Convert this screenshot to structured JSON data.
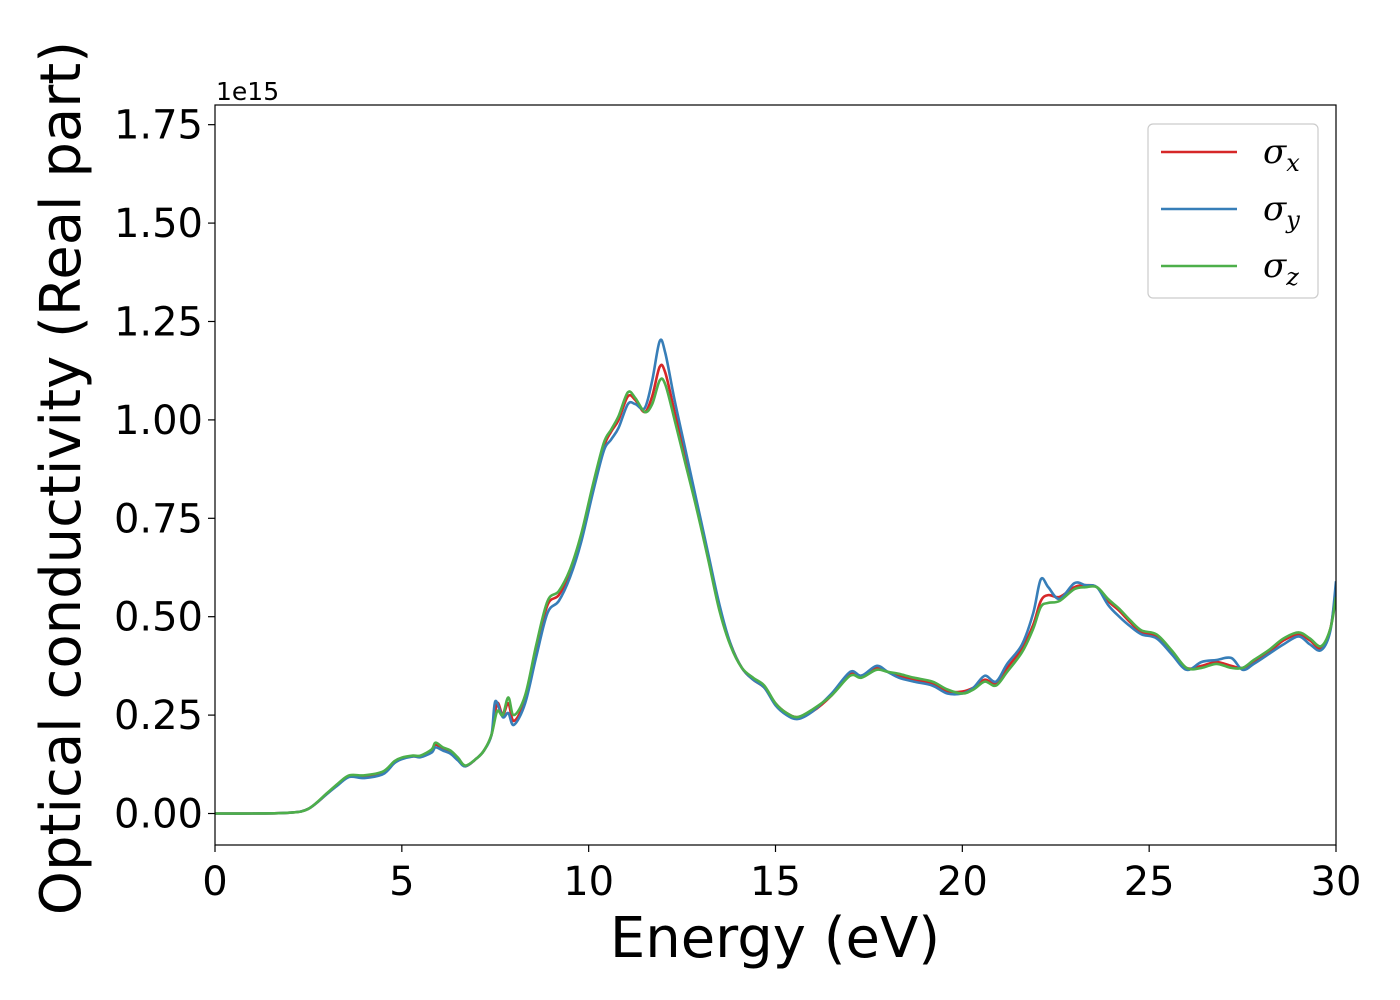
{
  "chart_data": {
    "type": "line",
    "title": "",
    "xlabel": "Energy (eV)",
    "ylabel": "Optical conductivity (Real part)",
    "y_offset_label": "1e15",
    "xlim": [
      0,
      30
    ],
    "ylim": [
      -0.08,
      1.8
    ],
    "x_ticks": [
      0,
      5,
      10,
      15,
      20,
      25,
      30
    ],
    "x_tick_labels": [
      "0",
      "5",
      "10",
      "15",
      "20",
      "25",
      "30"
    ],
    "y_ticks": [
      0.0,
      0.25,
      0.5,
      0.75,
      1.0,
      1.25,
      1.5,
      1.75
    ],
    "y_tick_labels": [
      "0.00",
      "0.25",
      "0.50",
      "0.75",
      "1.00",
      "1.25",
      "1.50",
      "1.75"
    ],
    "grid": false,
    "legend_position": "top-right",
    "series": [
      {
        "name": "σx",
        "legend_symbol": "σ",
        "legend_sub": "x",
        "color": "#d62728",
        "points": [
          [
            0,
            0
          ],
          [
            1,
            0
          ],
          [
            2,
            0.002
          ],
          [
            2.5,
            0.012
          ],
          [
            3,
            0.05
          ],
          [
            3.3,
            0.075
          ],
          [
            3.6,
            0.095
          ],
          [
            4,
            0.095
          ],
          [
            4.5,
            0.105
          ],
          [
            4.8,
            0.13
          ],
          [
            5,
            0.14
          ],
          [
            5.3,
            0.145
          ],
          [
            5.5,
            0.145
          ],
          [
            5.8,
            0.16
          ],
          [
            5.9,
            0.175
          ],
          [
            6.1,
            0.165
          ],
          [
            6.3,
            0.158
          ],
          [
            6.5,
            0.14
          ],
          [
            6.7,
            0.12
          ],
          [
            7,
            0.14
          ],
          [
            7.2,
            0.16
          ],
          [
            7.4,
            0.2
          ],
          [
            7.55,
            0.28
          ],
          [
            7.7,
            0.25
          ],
          [
            7.85,
            0.28
          ],
          [
            8,
            0.235
          ],
          [
            8.3,
            0.29
          ],
          [
            8.6,
            0.42
          ],
          [
            8.9,
            0.53
          ],
          [
            9.2,
            0.555
          ],
          [
            9.5,
            0.61
          ],
          [
            9.8,
            0.7
          ],
          [
            10.1,
            0.82
          ],
          [
            10.4,
            0.93
          ],
          [
            10.6,
            0.97
          ],
          [
            10.8,
            1.0
          ],
          [
            11.05,
            1.06
          ],
          [
            11.25,
            1.05
          ],
          [
            11.5,
            1.02
          ],
          [
            11.7,
            1.06
          ],
          [
            11.9,
            1.135
          ],
          [
            12.05,
            1.12
          ],
          [
            12.3,
            1.02
          ],
          [
            12.6,
            0.9
          ],
          [
            12.9,
            0.78
          ],
          [
            13.2,
            0.65
          ],
          [
            13.5,
            0.52
          ],
          [
            13.8,
            0.43
          ],
          [
            14.1,
            0.37
          ],
          [
            14.4,
            0.34
          ],
          [
            14.7,
            0.32
          ],
          [
            15,
            0.28
          ],
          [
            15.3,
            0.255
          ],
          [
            15.6,
            0.245
          ],
          [
            16,
            0.26
          ],
          [
            16.5,
            0.3
          ],
          [
            17,
            0.355
          ],
          [
            17.3,
            0.35
          ],
          [
            17.7,
            0.37
          ],
          [
            18,
            0.36
          ],
          [
            18.3,
            0.35
          ],
          [
            18.7,
            0.34
          ],
          [
            19.2,
            0.33
          ],
          [
            19.6,
            0.31
          ],
          [
            20,
            0.31
          ],
          [
            20.3,
            0.32
          ],
          [
            20.6,
            0.34
          ],
          [
            20.9,
            0.33
          ],
          [
            21.2,
            0.37
          ],
          [
            21.6,
            0.42
          ],
          [
            21.9,
            0.48
          ],
          [
            22.1,
            0.54
          ],
          [
            22.3,
            0.555
          ],
          [
            22.6,
            0.55
          ],
          [
            23,
            0.575
          ],
          [
            23.3,
            0.58
          ],
          [
            23.6,
            0.575
          ],
          [
            23.9,
            0.54
          ],
          [
            24.2,
            0.515
          ],
          [
            24.5,
            0.485
          ],
          [
            24.8,
            0.46
          ],
          [
            25.2,
            0.45
          ],
          [
            25.6,
            0.41
          ],
          [
            26,
            0.37
          ],
          [
            26.4,
            0.375
          ],
          [
            26.8,
            0.385
          ],
          [
            27.2,
            0.375
          ],
          [
            27.5,
            0.37
          ],
          [
            27.8,
            0.385
          ],
          [
            28.2,
            0.41
          ],
          [
            28.6,
            0.44
          ],
          [
            29,
            0.455
          ],
          [
            29.3,
            0.44
          ],
          [
            29.6,
            0.42
          ],
          [
            29.85,
            0.47
          ],
          [
            30,
            0.57
          ]
        ]
      },
      {
        "name": "σy",
        "legend_symbol": "σ",
        "legend_sub": "y",
        "color": "#377eb8",
        "points": [
          [
            0,
            0
          ],
          [
            1,
            0
          ],
          [
            2,
            0.002
          ],
          [
            2.5,
            0.012
          ],
          [
            3,
            0.05
          ],
          [
            3.3,
            0.073
          ],
          [
            3.6,
            0.093
          ],
          [
            4,
            0.09
          ],
          [
            4.5,
            0.1
          ],
          [
            4.8,
            0.128
          ],
          [
            5,
            0.138
          ],
          [
            5.3,
            0.145
          ],
          [
            5.5,
            0.143
          ],
          [
            5.8,
            0.155
          ],
          [
            5.9,
            0.168
          ],
          [
            6.1,
            0.16
          ],
          [
            6.3,
            0.152
          ],
          [
            6.5,
            0.135
          ],
          [
            6.7,
            0.12
          ],
          [
            7,
            0.14
          ],
          [
            7.2,
            0.16
          ],
          [
            7.4,
            0.2
          ],
          [
            7.5,
            0.285
          ],
          [
            7.7,
            0.245
          ],
          [
            7.85,
            0.255
          ],
          [
            8,
            0.225
          ],
          [
            8.3,
            0.28
          ],
          [
            8.6,
            0.4
          ],
          [
            8.9,
            0.51
          ],
          [
            9.2,
            0.54
          ],
          [
            9.5,
            0.6
          ],
          [
            9.8,
            0.69
          ],
          [
            10.1,
            0.81
          ],
          [
            10.4,
            0.92
          ],
          [
            10.6,
            0.95
          ],
          [
            10.8,
            0.98
          ],
          [
            11.05,
            1.04
          ],
          [
            11.25,
            1.04
          ],
          [
            11.5,
            1.03
          ],
          [
            11.7,
            1.1
          ],
          [
            11.9,
            1.2
          ],
          [
            12.05,
            1.17
          ],
          [
            12.3,
            1.05
          ],
          [
            12.6,
            0.92
          ],
          [
            12.9,
            0.79
          ],
          [
            13.2,
            0.66
          ],
          [
            13.5,
            0.53
          ],
          [
            13.8,
            0.43
          ],
          [
            14.1,
            0.37
          ],
          [
            14.4,
            0.34
          ],
          [
            14.7,
            0.32
          ],
          [
            15,
            0.275
          ],
          [
            15.3,
            0.25
          ],
          [
            15.6,
            0.24
          ],
          [
            16,
            0.26
          ],
          [
            16.5,
            0.305
          ],
          [
            17,
            0.36
          ],
          [
            17.3,
            0.35
          ],
          [
            17.7,
            0.375
          ],
          [
            18,
            0.36
          ],
          [
            18.3,
            0.345
          ],
          [
            18.7,
            0.335
          ],
          [
            19.2,
            0.325
          ],
          [
            19.6,
            0.305
          ],
          [
            20,
            0.305
          ],
          [
            20.3,
            0.32
          ],
          [
            20.6,
            0.35
          ],
          [
            20.9,
            0.335
          ],
          [
            21.2,
            0.38
          ],
          [
            21.6,
            0.43
          ],
          [
            21.9,
            0.51
          ],
          [
            22.1,
            0.595
          ],
          [
            22.3,
            0.575
          ],
          [
            22.6,
            0.545
          ],
          [
            23,
            0.585
          ],
          [
            23.3,
            0.58
          ],
          [
            23.6,
            0.575
          ],
          [
            23.9,
            0.53
          ],
          [
            24.2,
            0.5
          ],
          [
            24.5,
            0.475
          ],
          [
            24.8,
            0.455
          ],
          [
            25.2,
            0.445
          ],
          [
            25.6,
            0.405
          ],
          [
            26,
            0.365
          ],
          [
            26.4,
            0.385
          ],
          [
            26.8,
            0.39
          ],
          [
            27.2,
            0.395
          ],
          [
            27.5,
            0.365
          ],
          [
            27.8,
            0.38
          ],
          [
            28.2,
            0.405
          ],
          [
            28.6,
            0.43
          ],
          [
            29,
            0.45
          ],
          [
            29.3,
            0.43
          ],
          [
            29.6,
            0.415
          ],
          [
            29.85,
            0.465
          ],
          [
            30,
            0.59
          ]
        ]
      },
      {
        "name": "σz",
        "legend_symbol": "σ",
        "legend_sub": "z",
        "color": "#4daf4a",
        "points": [
          [
            0,
            0
          ],
          [
            1,
            0
          ],
          [
            2,
            0.002
          ],
          [
            2.5,
            0.012
          ],
          [
            3,
            0.052
          ],
          [
            3.3,
            0.077
          ],
          [
            3.6,
            0.097
          ],
          [
            4,
            0.097
          ],
          [
            4.5,
            0.107
          ],
          [
            4.8,
            0.133
          ],
          [
            5,
            0.142
          ],
          [
            5.3,
            0.147
          ],
          [
            5.5,
            0.147
          ],
          [
            5.8,
            0.163
          ],
          [
            5.9,
            0.18
          ],
          [
            6.1,
            0.168
          ],
          [
            6.3,
            0.16
          ],
          [
            6.5,
            0.142
          ],
          [
            6.7,
            0.122
          ],
          [
            7,
            0.14
          ],
          [
            7.2,
            0.16
          ],
          [
            7.4,
            0.2
          ],
          [
            7.55,
            0.26
          ],
          [
            7.7,
            0.25
          ],
          [
            7.85,
            0.295
          ],
          [
            8,
            0.25
          ],
          [
            8.3,
            0.3
          ],
          [
            8.6,
            0.43
          ],
          [
            8.9,
            0.54
          ],
          [
            9.2,
            0.565
          ],
          [
            9.5,
            0.62
          ],
          [
            9.8,
            0.71
          ],
          [
            10.1,
            0.83
          ],
          [
            10.4,
            0.94
          ],
          [
            10.6,
            0.975
          ],
          [
            10.8,
            1.01
          ],
          [
            11.05,
            1.07
          ],
          [
            11.25,
            1.055
          ],
          [
            11.5,
            1.02
          ],
          [
            11.7,
            1.04
          ],
          [
            11.9,
            1.1
          ],
          [
            12.05,
            1.09
          ],
          [
            12.3,
            1.0
          ],
          [
            12.6,
            0.885
          ],
          [
            12.9,
            0.77
          ],
          [
            13.2,
            0.645
          ],
          [
            13.5,
            0.515
          ],
          [
            13.8,
            0.425
          ],
          [
            14.1,
            0.37
          ],
          [
            14.4,
            0.345
          ],
          [
            14.7,
            0.325
          ],
          [
            15,
            0.28
          ],
          [
            15.3,
            0.255
          ],
          [
            15.6,
            0.245
          ],
          [
            16,
            0.265
          ],
          [
            16.5,
            0.3
          ],
          [
            17,
            0.35
          ],
          [
            17.3,
            0.345
          ],
          [
            17.7,
            0.365
          ],
          [
            18,
            0.36
          ],
          [
            18.3,
            0.355
          ],
          [
            18.7,
            0.345
          ],
          [
            19.2,
            0.335
          ],
          [
            19.6,
            0.315
          ],
          [
            20,
            0.305
          ],
          [
            20.3,
            0.315
          ],
          [
            20.6,
            0.335
          ],
          [
            20.9,
            0.325
          ],
          [
            21.2,
            0.36
          ],
          [
            21.6,
            0.41
          ],
          [
            21.9,
            0.47
          ],
          [
            22.1,
            0.525
          ],
          [
            22.3,
            0.535
          ],
          [
            22.6,
            0.54
          ],
          [
            23,
            0.57
          ],
          [
            23.3,
            0.575
          ],
          [
            23.6,
            0.575
          ],
          [
            23.9,
            0.545
          ],
          [
            24.2,
            0.52
          ],
          [
            24.5,
            0.49
          ],
          [
            24.8,
            0.465
          ],
          [
            25.2,
            0.455
          ],
          [
            25.6,
            0.415
          ],
          [
            26,
            0.37
          ],
          [
            26.4,
            0.37
          ],
          [
            26.8,
            0.38
          ],
          [
            27.2,
            0.37
          ],
          [
            27.5,
            0.37
          ],
          [
            27.8,
            0.39
          ],
          [
            28.2,
            0.415
          ],
          [
            28.6,
            0.445
          ],
          [
            29,
            0.46
          ],
          [
            29.3,
            0.445
          ],
          [
            29.6,
            0.425
          ],
          [
            29.85,
            0.47
          ],
          [
            30,
            0.55
          ]
        ]
      }
    ]
  }
}
